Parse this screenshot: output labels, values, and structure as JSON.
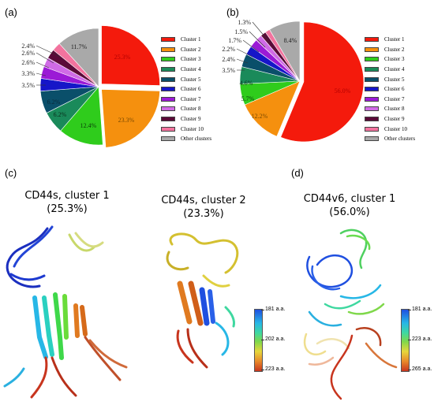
{
  "panels": {
    "a": "(a)",
    "b": "(b)",
    "c": "(c)",
    "d": "(d)"
  },
  "chart_data": [
    {
      "type": "pie",
      "panel": "(a)",
      "categories": [
        "Cluster 1",
        "Cluster 2",
        "Cluster 3",
        "Cluster 4",
        "Cluster 5",
        "Cluster 6",
        "Cluster 7",
        "Cluster 8",
        "Cluster 9",
        "Cluster 10",
        "Other clusters"
      ],
      "values": [
        25.3,
        23.3,
        12.4,
        6.2,
        6.2,
        3.5,
        3.3,
        2.6,
        2.6,
        2.4,
        11.7
      ],
      "labels": [
        "25.3%",
        "23.3%",
        "12.4%",
        "6.2%",
        "6.2%",
        "3.5%",
        "3.3%",
        "2.6%",
        "2.6%",
        "2.4%",
        "11.7%"
      ],
      "colors": [
        "#f41a0c",
        "#f5900e",
        "#2fcc1c",
        "#1a8a5a",
        "#0a4f6a",
        "#1616c8",
        "#9b1ad6",
        "#d06be6",
        "#5a0a38",
        "#f2739e",
        "#a9a9a9"
      ],
      "legend": "right",
      "exploded": [
        0,
        1
      ]
    },
    {
      "type": "pie",
      "panel": "(b)",
      "categories": [
        "Cluster 1",
        "Cluster 2",
        "Cluster 3",
        "Cluster 4",
        "Cluster 5",
        "Cluster 6",
        "Cluster 7",
        "Cluster 8",
        "Cluster 9",
        "Cluster 10",
        "Other clusters"
      ],
      "values": [
        56.0,
        12.2,
        5.7,
        4.6,
        3.5,
        2.4,
        2.2,
        1.7,
        1.5,
        1.3,
        8.4
      ],
      "labels": [
        "56.0%",
        "12.2%",
        "5.7%",
        "4.6%",
        "3.5%",
        "2.4%",
        "2.2%",
        "1.7%",
        "1.5%",
        "1.3%",
        "8.4%"
      ],
      "colors": [
        "#f41a0c",
        "#f5900e",
        "#2fcc1c",
        "#1a8a5a",
        "#0a4f6a",
        "#1616c8",
        "#9b1ad6",
        "#d06be6",
        "#5a0a38",
        "#f2739e",
        "#a9a9a9"
      ],
      "legend": "right",
      "exploded": [
        0
      ]
    }
  ],
  "structures": [
    {
      "title": "CD44s, cluster 1\n(25.3%)"
    },
    {
      "title": "CD44s, cluster 2\n(23.3%)",
      "colorbar": {
        "top": "181 a.a.",
        "mid": "202 a.a.",
        "bottom": "223 a.a."
      }
    },
    {
      "title": "CD44v6, cluster 1\n(56.0%)",
      "colorbar": {
        "top": "181 a.a.",
        "mid": "223 a.a.",
        "bottom": "265 a.a."
      }
    }
  ]
}
